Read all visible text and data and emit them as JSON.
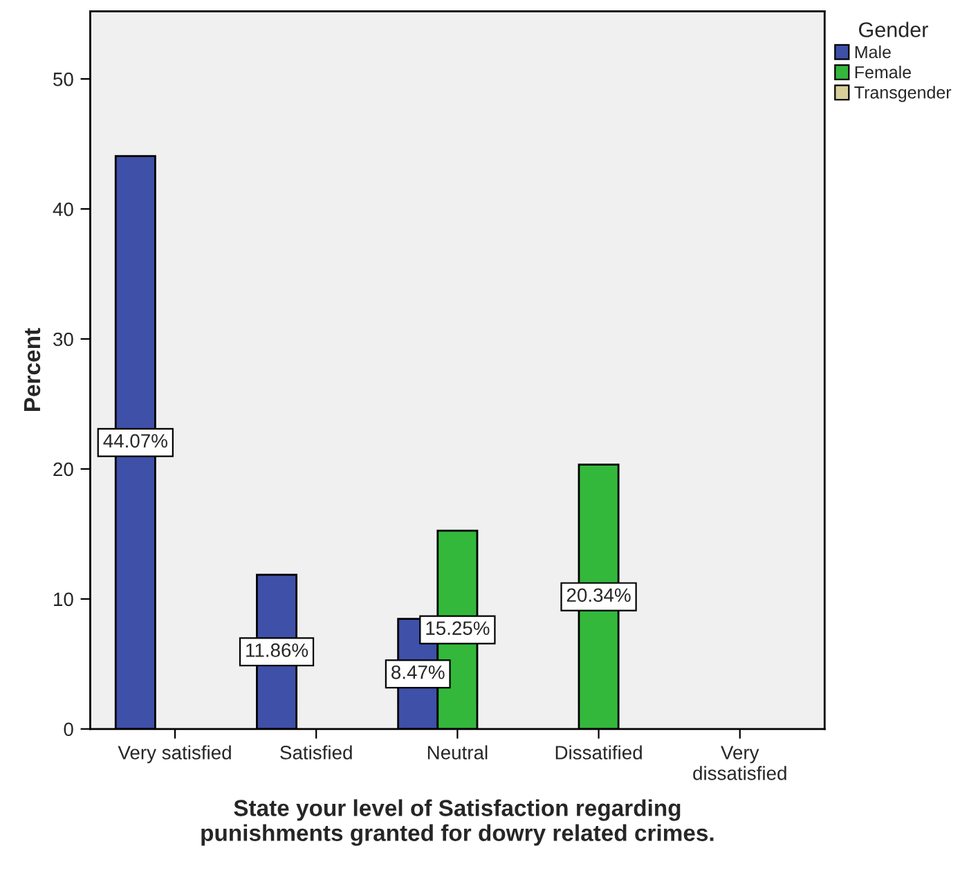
{
  "chart_data": {
    "type": "bar",
    "xlabel": "State your level of Satisfaction regarding\npunishments granted for dowry related crimes.",
    "ylabel": "Percent",
    "legend_title": "Gender",
    "categories": [
      "Very satisfied",
      "Satisfied",
      "Neutral",
      "Dissatified",
      "Very\ndissatisfied"
    ],
    "series": [
      {
        "name": "Male",
        "color": "#3e50a8",
        "values": [
          44.07,
          11.86,
          8.47,
          null,
          null
        ],
        "value_labels": [
          "44.07%",
          "11.86%",
          "8.47%",
          null,
          null
        ]
      },
      {
        "name": "Female",
        "color": "#33b83c",
        "values": [
          null,
          null,
          15.25,
          20.34,
          null
        ],
        "value_labels": [
          null,
          null,
          "15.25%",
          "20.34%",
          null
        ]
      },
      {
        "name": "Transgender",
        "color": "#d9cf9b",
        "values": [
          null,
          null,
          null,
          null,
          null
        ]
      }
    ],
    "ylim": [
      0,
      55.2
    ],
    "yticks": [
      0,
      10,
      20,
      30,
      40,
      50
    ],
    "grid": false,
    "legend": "top right"
  }
}
